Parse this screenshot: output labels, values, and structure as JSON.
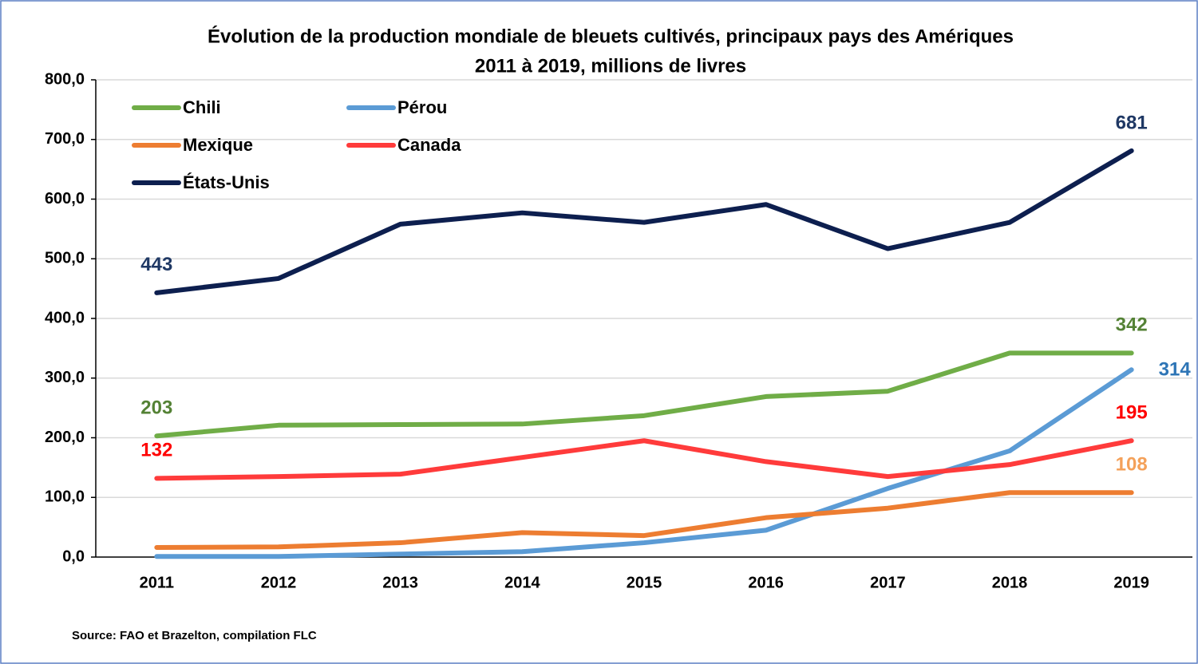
{
  "chart_data": {
    "type": "line",
    "title": "Évolution de la production mondiale de bleuets cultivés, principaux pays des Amériques",
    "subtitle": "2011 à 2019, millions de livres",
    "source": "Source: FAO et Brazelton, compilation FLC",
    "categories": [
      "2011",
      "2012",
      "2013",
      "2014",
      "2015",
      "2016",
      "2017",
      "2018",
      "2019"
    ],
    "series": [
      {
        "name": "Chili",
        "color": "#70ad47",
        "label_color": "#548235",
        "values": [
          203,
          221,
          222,
          223,
          237,
          269,
          278,
          342,
          342
        ],
        "value_labels": [
          "203",
          null,
          null,
          null,
          null,
          null,
          null,
          null,
          "342"
        ]
      },
      {
        "name": "Pérou",
        "color": "#5b9bd5",
        "label_color": "#2e75b6",
        "values": [
          1,
          1,
          5,
          9,
          24,
          45,
          115,
          178,
          314
        ],
        "value_labels": [
          null,
          null,
          null,
          null,
          null,
          null,
          null,
          null,
          "314"
        ]
      },
      {
        "name": "Mexique",
        "color": "#ed7d31",
        "label_color": "#f4a15a",
        "values": [
          16,
          17,
          24,
          41,
          36,
          66,
          82,
          108,
          108
        ],
        "value_labels": [
          null,
          null,
          null,
          null,
          null,
          null,
          null,
          null,
          "108"
        ]
      },
      {
        "name": "Canada",
        "color": "#ff3b3b",
        "label_color": "#ff0000",
        "values": [
          132,
          135,
          139,
          167,
          195,
          160,
          135,
          155,
          195
        ],
        "value_labels": [
          "132",
          null,
          null,
          null,
          null,
          null,
          null,
          null,
          "195"
        ]
      },
      {
        "name": "États-Unis",
        "color": "#0d1f4f",
        "label_color": "#1f3864",
        "values": [
          443,
          467,
          558,
          577,
          561,
          591,
          517,
          561,
          681
        ],
        "value_labels": [
          "443",
          null,
          null,
          null,
          null,
          null,
          null,
          null,
          "681"
        ]
      }
    ],
    "ylim": [
      0,
      800
    ],
    "yticks": [
      {
        "value": 0,
        "label": "0,0"
      },
      {
        "value": 100,
        "label": "100,0"
      },
      {
        "value": 200,
        "label": "200,0"
      },
      {
        "value": 300,
        "label": "300,0"
      },
      {
        "value": 400,
        "label": "400,0"
      },
      {
        "value": 500,
        "label": "500,0"
      },
      {
        "value": 600,
        "label": "600,0"
      },
      {
        "value": 700,
        "label": "700,0"
      },
      {
        "value": 800,
        "label": "800,0"
      }
    ],
    "grid": true,
    "legend": "upper left"
  }
}
